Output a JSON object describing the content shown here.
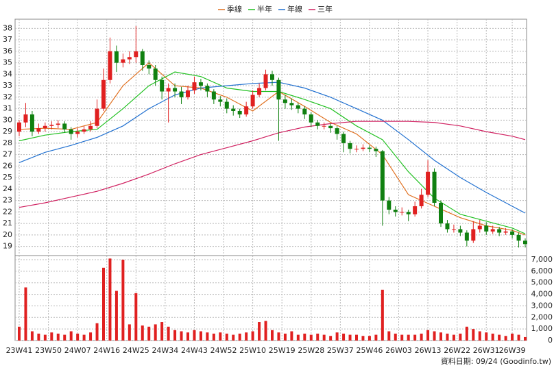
{
  "chart_data": {
    "type": "candlestick",
    "legend": [
      {
        "name": "季線",
        "color": "#e07020"
      },
      {
        "name": "半年",
        "color": "#20c020"
      },
      {
        "name": "年線",
        "color": "#2070d0"
      },
      {
        "name": "三年",
        "color": "#d02060"
      }
    ],
    "x": [
      0,
      2,
      4,
      6,
      8,
      10,
      12,
      14,
      16,
      18,
      20,
      22,
      24,
      26,
      28,
      30,
      32,
      34,
      36,
      38,
      40,
      42,
      44,
      46,
      48,
      50,
      52,
      54,
      56,
      58,
      60,
      62,
      64,
      66,
      68,
      70,
      72,
      74,
      76,
      78,
      80,
      82,
      84,
      86,
      88,
      90,
      92,
      94,
      96,
      98,
      100,
      102,
      104,
      106,
      108,
      110,
      112,
      114,
      116,
      118,
      120,
      122,
      124,
      126,
      128,
      130,
      132,
      134,
      136,
      138,
      140,
      142,
      144,
      146,
      148,
      150,
      152,
      154,
      156
    ],
    "xlim": [
      0,
      156
    ],
    "xticks": [
      {
        "value": 0,
        "label": "23W41"
      },
      {
        "value": 9,
        "label": "23W50"
      },
      {
        "value": 18,
        "label": "24W07"
      },
      {
        "value": 27,
        "label": "24W16"
      },
      {
        "value": 36,
        "label": "24W25"
      },
      {
        "value": 45,
        "label": "24W34"
      },
      {
        "value": 54,
        "label": "24W43"
      },
      {
        "value": 63,
        "label": "24W52"
      },
      {
        "value": 72,
        "label": "25W10"
      },
      {
        "value": 81,
        "label": "25W19"
      },
      {
        "value": 90,
        "label": "25W28"
      },
      {
        "value": 99,
        "label": "25W37"
      },
      {
        "value": 108,
        "label": "25W46"
      },
      {
        "value": 117,
        "label": "26W03"
      },
      {
        "value": 126,
        "label": "26W13"
      },
      {
        "value": 135,
        "label": "26W22"
      },
      {
        "value": 144,
        "label": "26W31"
      },
      {
        "value": 152,
        "label": "26W39"
      }
    ],
    "candles": [
      [
        29,
        30,
        28.6,
        29.8
      ],
      [
        29.8,
        31.5,
        29.4,
        30.5
      ],
      [
        30.5,
        30.8,
        28.6,
        29
      ],
      [
        29,
        29.7,
        28.8,
        29.3
      ],
      [
        29.3,
        29.8,
        29,
        29.5
      ],
      [
        29.5,
        29.9,
        29.2,
        29.6
      ],
      [
        29.6,
        30,
        29.3,
        29.7
      ],
      [
        29.7,
        29.9,
        28.9,
        29.2
      ],
      [
        29.2,
        29.4,
        28.3,
        28.8
      ],
      [
        28.8,
        29.3,
        28.5,
        29
      ],
      [
        29,
        29.5,
        28.8,
        29.2
      ],
      [
        29.2,
        29.9,
        29,
        29.5
      ],
      [
        29.5,
        31.8,
        29.3,
        31
      ],
      [
        31,
        34.5,
        30.8,
        33.5
      ],
      [
        33.5,
        37.2,
        33.2,
        36
      ],
      [
        36,
        36.5,
        34.2,
        35
      ],
      [
        35,
        35.8,
        34.6,
        35.3
      ],
      [
        35.3,
        36,
        34.9,
        35.5
      ],
      [
        35.5,
        38.2,
        35,
        36
      ],
      [
        36,
        36.2,
        34.3,
        34.8
      ],
      [
        34.8,
        35.2,
        34,
        34.5
      ],
      [
        34.5,
        34.8,
        33,
        33.5
      ],
      [
        33.5,
        33.8,
        31.8,
        32.5
      ],
      [
        32.5,
        33.2,
        29.8,
        32.8
      ],
      [
        32.8,
        33.2,
        32,
        32.5
      ],
      [
        32.5,
        32.9,
        31.4,
        32
      ],
      [
        32,
        33,
        31.8,
        32.6
      ],
      [
        32.6,
        33.8,
        32.3,
        33.3
      ],
      [
        33.3,
        33.6,
        32.6,
        33
      ],
      [
        33,
        33.2,
        32,
        32.5
      ],
      [
        32.5,
        32.7,
        31.4,
        31.8
      ],
      [
        31.8,
        32.1,
        31.2,
        31.6
      ],
      [
        31.6,
        31.9,
        30.6,
        31
      ],
      [
        31,
        31.3,
        30.4,
        30.8
      ],
      [
        30.8,
        31,
        30.2,
        30.5
      ],
      [
        30.5,
        31.6,
        30.3,
        31.2
      ],
      [
        31.2,
        32.6,
        31,
        32.2
      ],
      [
        32.2,
        33.2,
        32,
        32.8
      ],
      [
        32.8,
        34.4,
        32.6,
        34
      ],
      [
        34,
        34.3,
        33,
        33.5
      ],
      [
        33.5,
        33.7,
        28.2,
        31.8
      ],
      [
        31.8,
        32.2,
        31,
        31.5
      ],
      [
        31.5,
        31.9,
        30.9,
        31.3
      ],
      [
        31.3,
        31.5,
        30.6,
        31
      ],
      [
        31,
        31.2,
        30.1,
        30.5
      ],
      [
        30.5,
        30.7,
        29.4,
        29.8
      ],
      [
        29.8,
        30,
        29.2,
        29.5
      ],
      [
        29.5,
        29.8,
        29.2,
        29.5
      ],
      [
        29.5,
        29.7,
        28.9,
        29.3
      ],
      [
        29.3,
        29.5,
        28.3,
        28.8
      ],
      [
        28.8,
        29,
        27.2,
        28
      ],
      [
        28,
        28.2,
        27.1,
        27.5
      ],
      [
        27.5,
        27.8,
        27.2,
        27.5
      ],
      [
        27.5,
        27.9,
        27.3,
        27.6
      ],
      [
        27.6,
        27.8,
        27.2,
        27.5
      ],
      [
        27.5,
        27.7,
        26.8,
        27.3
      ],
      [
        27.3,
        27.4,
        20.8,
        23
      ],
      [
        23,
        23.3,
        21.8,
        22.2
      ],
      [
        22.2,
        22.5,
        21.6,
        22
      ],
      [
        22,
        22.4,
        21.7,
        22
      ],
      [
        22,
        22.2,
        21.2,
        21.8
      ],
      [
        21.8,
        22.9,
        21.6,
        22.5
      ],
      [
        22.5,
        24,
        22.3,
        23.5
      ],
      [
        23.5,
        26.5,
        23.3,
        25.5
      ],
      [
        25.5,
        25.8,
        22.5,
        22.8
      ],
      [
        22.8,
        23,
        20.7,
        21
      ],
      [
        21,
        21.3,
        20.2,
        20.5
      ],
      [
        20.5,
        20.9,
        20.2,
        20.5
      ],
      [
        20.5,
        20.8,
        19.9,
        20.2
      ],
      [
        20.2,
        20.4,
        19,
        19.5
      ],
      [
        19.5,
        21.2,
        19.3,
        20.5
      ],
      [
        20.5,
        21.3,
        20.2,
        20.8
      ],
      [
        20.8,
        21.1,
        20,
        20.3
      ],
      [
        20.3,
        20.8,
        20.1,
        20.5
      ],
      [
        20.5,
        20.7,
        19.9,
        20.2
      ],
      [
        20.2,
        20.6,
        20,
        20.3
      ],
      [
        20.3,
        20.5,
        19.7,
        20
      ],
      [
        20,
        20.2,
        18.9,
        19.5
      ],
      [
        19.5,
        19.7,
        18.9,
        19.2
      ]
    ],
    "up_color": "#e02020",
    "down_color": "#108010",
    "ylim": [
      18.2,
      38.8
    ],
    "yticks": [
      19,
      20,
      21,
      22,
      23,
      24,
      25,
      26,
      27,
      28,
      29,
      30,
      31,
      32,
      33,
      34,
      35,
      36,
      37,
      38
    ],
    "ma_x": [
      0,
      8,
      16,
      24,
      32,
      40,
      48,
      56,
      64,
      72,
      80,
      88,
      96,
      104,
      112,
      120,
      128,
      136,
      144,
      152,
      156
    ],
    "ma_series": [
      {
        "color": "#e07020",
        "values": [
          29.2,
          29.3,
          29.2,
          29.8,
          33,
          35,
          33,
          32.8,
          32,
          30.8,
          32.5,
          31.2,
          29.8,
          28.8,
          27,
          23.5,
          22.5,
          21.5,
          20.8,
          20.4,
          20
        ]
      },
      {
        "color": "#20c020",
        "values": [
          28.2,
          28.7,
          29,
          29.2,
          31,
          33,
          34.2,
          33.8,
          32.8,
          32.5,
          32.5,
          31.8,
          31,
          29.5,
          28.3,
          25.5,
          23.2,
          21.8,
          21.2,
          20.6,
          20.1
        ]
      },
      {
        "color": "#2070d0",
        "values": [
          26.3,
          27.2,
          27.8,
          28.5,
          29.5,
          31,
          32.2,
          32.8,
          33,
          33.2,
          33.3,
          32.8,
          32,
          31,
          30,
          28.3,
          26.5,
          25,
          23.7,
          22.5,
          21.9
        ]
      },
      {
        "color": "#d02060",
        "values": [
          22.4,
          22.8,
          23.3,
          23.8,
          24.5,
          25.3,
          26.2,
          27,
          27.6,
          28.2,
          28.9,
          29.4,
          29.7,
          29.9,
          29.9,
          29.9,
          29.8,
          29.5,
          29,
          28.6,
          28.3
        ]
      }
    ],
    "volume": [
      1200,
      4600,
      800,
      600,
      500,
      700,
      600,
      500,
      800,
      600,
      500,
      700,
      1500,
      6300,
      7100,
      4300,
      7000,
      1400,
      4100,
      1300,
      1200,
      1400,
      1600,
      1200,
      900,
      800,
      700,
      900,
      800,
      700,
      600,
      700,
      600,
      500,
      600,
      700,
      800,
      1600,
      1700,
      900,
      700,
      600,
      800,
      500,
      600,
      500,
      600,
      500,
      400,
      700,
      600,
      500,
      500,
      400,
      400,
      500,
      4400,
      800,
      600,
      500,
      500,
      500,
      600,
      900,
      800,
      700,
      600,
      500,
      600,
      1200,
      1000,
      800,
      700,
      600,
      500,
      400,
      600,
      500,
      300
    ],
    "volume_color": "#e02020",
    "vlim": [
      0,
      7000
    ],
    "vticks": [
      0,
      {
        "value": 1000,
        "label": "1,000"
      },
      {
        "value": 2000,
        "label": "2,000"
      },
      {
        "value": 3000,
        "label": "3,000"
      },
      {
        "value": 4000,
        "label": "4,000"
      },
      {
        "value": 5000,
        "label": "5,000"
      },
      {
        "value": 6000,
        "label": "6,000"
      },
      {
        "value": 7000,
        "label": "7,000"
      }
    ],
    "grid": true,
    "footer": "資料日期: 09/24  (Goodinfo.tw)"
  }
}
